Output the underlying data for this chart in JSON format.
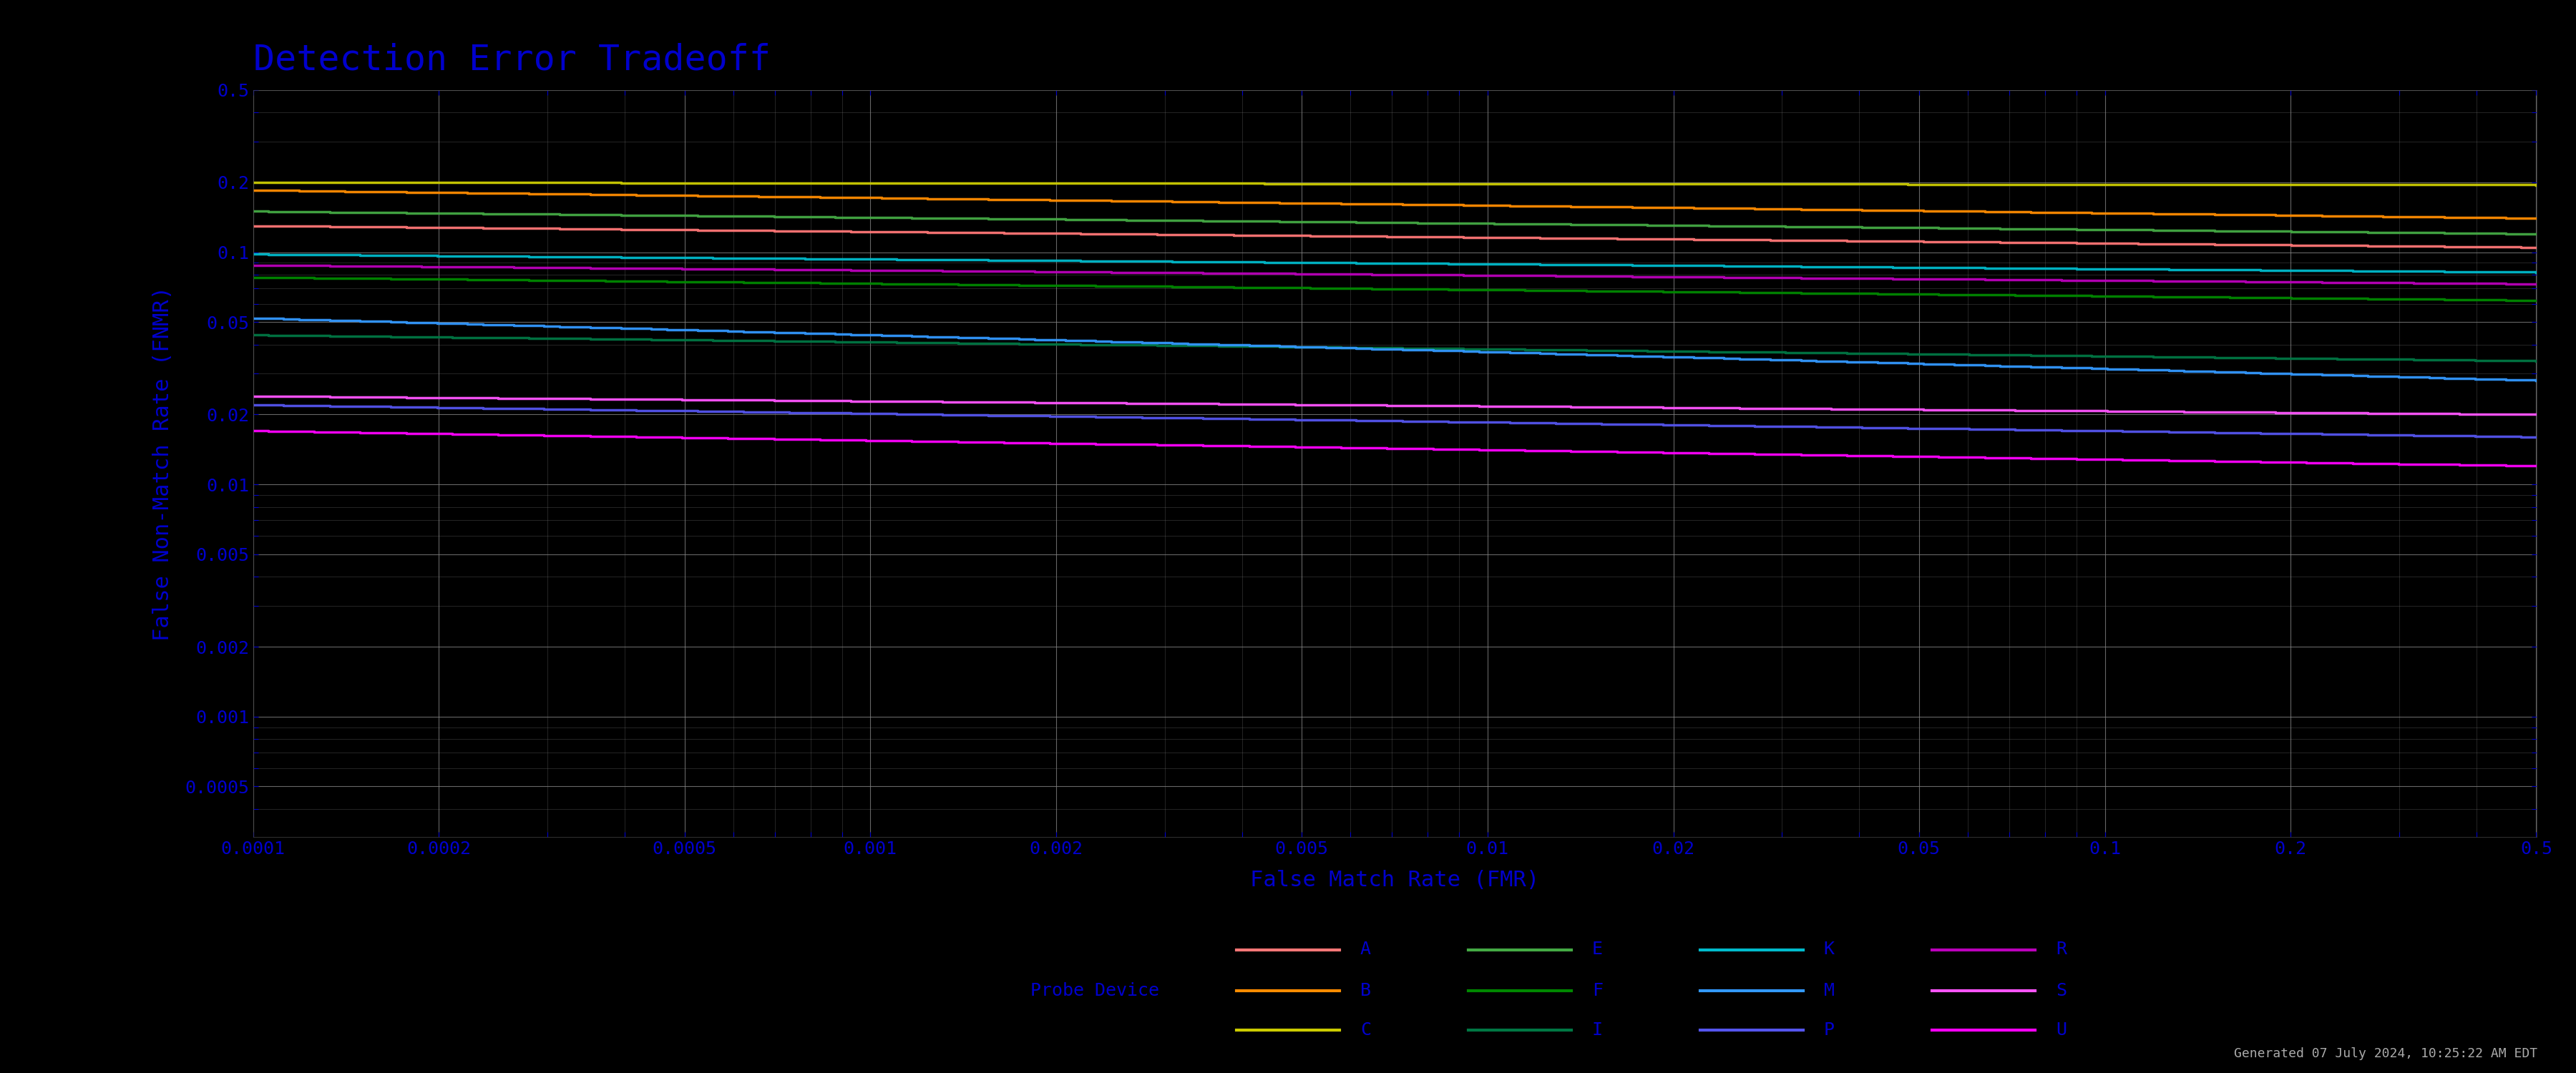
{
  "title": "Detection Error Tradeoff",
  "xlabel": "False Match Rate (FMR)",
  "ylabel": "False Non-Match Rate (FNMR)",
  "title_color": "#0000CC",
  "label_color": "#0000CC",
  "background_color": "#000000",
  "plot_bg_color": "#000000",
  "grid_color": "#808080",
  "tick_color": "#0000CC",
  "xlim_log": [
    -4,
    -0.301
  ],
  "ylim_log": [
    -3.52,
    -0.301
  ],
  "xticks": [
    0.0001,
    0.0002,
    0.0005,
    0.001,
    0.002,
    0.005,
    0.01,
    0.02,
    0.05,
    0.1,
    0.2,
    0.5
  ],
  "yticks": [
    0.0005,
    0.001,
    0.002,
    0.005,
    0.01,
    0.02,
    0.05,
    0.1,
    0.2,
    0.5
  ],
  "footer_text": "Generated 07 July 2024, 10:25:22 AM EDT",
  "series": [
    {
      "label": "A",
      "color": "#FF7777",
      "fnmr_start": 0.13,
      "fnmr_end": 0.105,
      "lw": 2.5
    },
    {
      "label": "B",
      "color": "#FF8C00",
      "fnmr_start": 0.185,
      "fnmr_end": 0.14,
      "lw": 2.5
    },
    {
      "label": "C",
      "color": "#CCCC00",
      "fnmr_start": 0.2,
      "fnmr_end": 0.195,
      "lw": 2.5
    },
    {
      "label": "E",
      "color": "#44AA44",
      "fnmr_start": 0.15,
      "fnmr_end": 0.12,
      "lw": 2.5
    },
    {
      "label": "F",
      "color": "#008800",
      "fnmr_start": 0.078,
      "fnmr_end": 0.062,
      "lw": 2.5
    },
    {
      "label": "I",
      "color": "#007744",
      "fnmr_start": 0.044,
      "fnmr_end": 0.034,
      "lw": 2.5
    },
    {
      "label": "K",
      "color": "#00BBCC",
      "fnmr_start": 0.098,
      "fnmr_end": 0.082,
      "lw": 2.5
    },
    {
      "label": "M",
      "color": "#3399FF",
      "fnmr_start": 0.052,
      "fnmr_end": 0.028,
      "lw": 2.5
    },
    {
      "label": "P",
      "color": "#5555EE",
      "fnmr_start": 0.022,
      "fnmr_end": 0.016,
      "lw": 2.5
    },
    {
      "label": "R",
      "color": "#BB00BB",
      "fnmr_start": 0.088,
      "fnmr_end": 0.073,
      "lw": 2.5
    },
    {
      "label": "S",
      "color": "#FF55FF",
      "fnmr_start": 0.024,
      "fnmr_end": 0.02,
      "lw": 2.5
    },
    {
      "label": "U",
      "color": "#FF00FF",
      "fnmr_start": 0.017,
      "fnmr_end": 0.012,
      "lw": 2.5
    }
  ],
  "legend_rows": [
    [
      [
        "A",
        "#FF7777"
      ],
      [
        "E",
        "#44AA44"
      ],
      [
        "K",
        "#00BBCC"
      ],
      [
        "R",
        "#BB00BB"
      ]
    ],
    [
      [
        "B",
        "#FF8C00"
      ],
      [
        "F",
        "#008800"
      ],
      [
        "M",
        "#3399FF"
      ],
      [
        "S",
        "#FF55FF"
      ]
    ],
    [
      [
        "C",
        "#CCCC00"
      ],
      [
        "I",
        "#007744"
      ],
      [
        "P",
        "#5555EE"
      ],
      [
        "U",
        "#FF00FF"
      ]
    ]
  ],
  "legend_row_labels": [
    "",
    "Probe Device",
    ""
  ]
}
